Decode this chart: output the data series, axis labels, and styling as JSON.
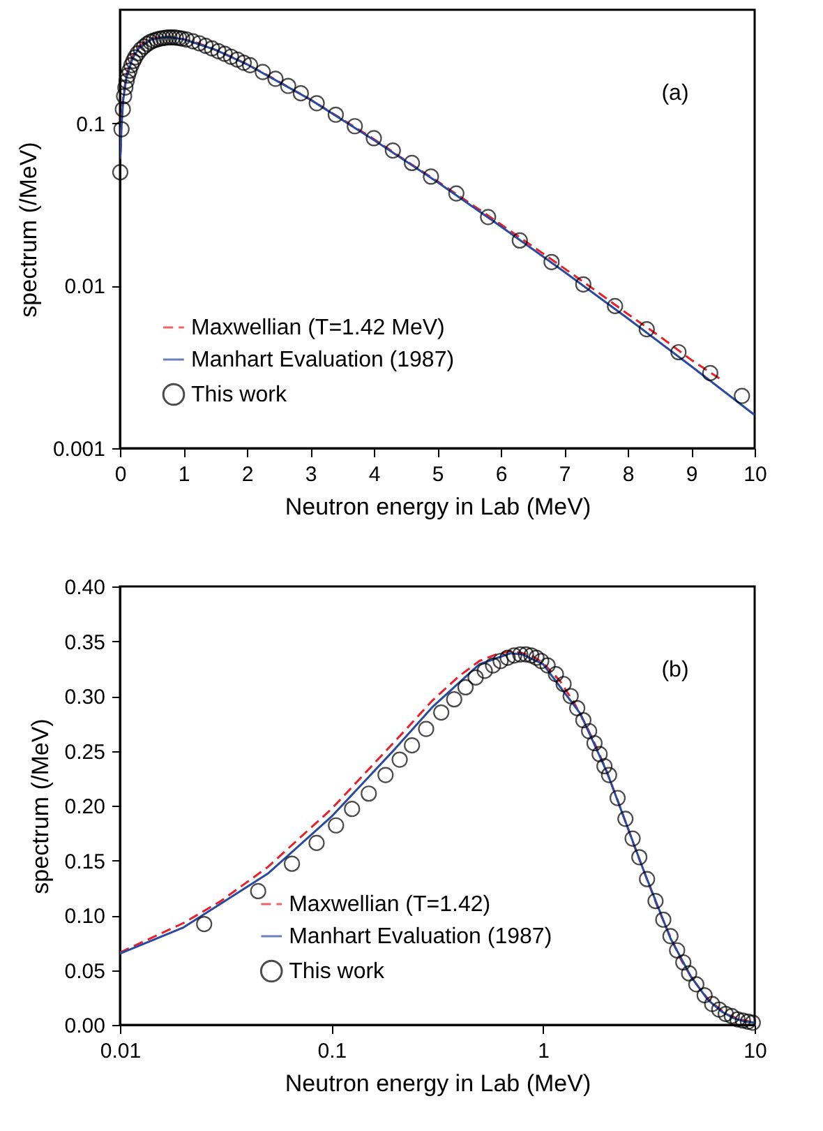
{
  "chart_data": [
    {
      "type": "line",
      "xlabel": "Neutron energy in Lab (MeV)",
      "ylabel": "spectrum (/MeV)",
      "annotations": [
        "(a)"
      ],
      "log": "y",
      "grid": false,
      "legend": "bottom left",
      "xlim": [
        0,
        10
      ],
      "xticks": [
        0,
        1,
        2,
        3,
        4,
        5,
        6,
        7,
        8,
        9,
        10
      ],
      "ylim": [
        0.001,
        0.5
      ],
      "yticks": [
        0.001,
        0.01,
        0.1
      ],
      "series": [
        {
          "name": "Maxwellian (T=1.42 MeV)",
          "type": "line",
          "color": "#e8202a",
          "line_style": "dashed",
          "x": [
            0.01,
            0.02,
            0.03,
            0.05,
            0.1,
            0.2,
            0.3,
            0.4,
            0.5,
            0.6,
            0.7,
            0.8,
            0.9,
            1,
            1.2,
            1.4,
            1.6,
            1.8,
            2,
            2.25,
            2.5,
            2.75,
            3,
            3.5,
            4,
            4.5,
            5,
            5.5,
            6,
            6.5,
            7,
            7.5,
            8,
            8.5,
            9,
            9.5
          ],
          "values": [
            0.066,
            0.093,
            0.113,
            0.144,
            0.197,
            0.259,
            0.296,
            0.318,
            0.332,
            0.338,
            0.341,
            0.339,
            0.336,
            0.33,
            0.314,
            0.294,
            0.273,
            0.252,
            0.231,
            0.205,
            0.181,
            0.159,
            0.14,
            0.106,
            0.08,
            0.059,
            0.044,
            0.0325,
            0.0239,
            0.0175,
            0.0128,
            0.0093,
            0.0067,
            0.0049,
            0.0035,
            0.0026
          ]
        },
        {
          "name": "Manhart Evaluation (1987)",
          "type": "line",
          "color": "#2a4aa0",
          "line_style": "solid",
          "x": [
            0,
            0.01,
            0.02,
            0.05,
            0.1,
            0.2,
            0.3,
            0.5,
            0.7,
            0.8,
            1,
            1.5,
            2,
            3,
            4,
            5,
            6,
            7,
            8,
            9,
            10
          ],
          "values": [
            0.06,
            0.065,
            0.089,
            0.138,
            0.19,
            0.252,
            0.29,
            0.329,
            0.339,
            0.338,
            0.329,
            0.284,
            0.231,
            0.14,
            0.079,
            0.0435,
            0.0232,
            0.0122,
            0.0063,
            0.0032,
            0.0016
          ]
        },
        {
          "name": "This work",
          "type": "scatter",
          "color": "#000000",
          "marker": "circle",
          "x": [
            0.005,
            0.025,
            0.045,
            0.065,
            0.085,
            0.105,
            0.125,
            0.15,
            0.18,
            0.21,
            0.24,
            0.28,
            0.33,
            0.38,
            0.43,
            0.48,
            0.53,
            0.58,
            0.63,
            0.68,
            0.73,
            0.78,
            0.83,
            0.88,
            0.93,
            0.98,
            1.05,
            1.15,
            1.25,
            1.35,
            1.45,
            1.55,
            1.65,
            1.75,
            1.85,
            1.95,
            2.05,
            2.25,
            2.45,
            2.65,
            2.85,
            3.1,
            3.4,
            3.7,
            4.0,
            4.3,
            4.6,
            4.9,
            5.3,
            5.8,
            6.3,
            6.8,
            7.3,
            7.8,
            8.3,
            8.8,
            9.3,
            9.8
          ],
          "values": [
            0.05,
            0.092,
            0.122,
            0.147,
            0.166,
            0.182,
            0.197,
            0.211,
            0.228,
            0.242,
            0.255,
            0.27,
            0.285,
            0.297,
            0.308,
            0.317,
            0.323,
            0.328,
            0.332,
            0.335,
            0.337,
            0.338,
            0.338,
            0.337,
            0.335,
            0.332,
            0.328,
            0.32,
            0.311,
            0.3,
            0.289,
            0.278,
            0.268,
            0.257,
            0.247,
            0.236,
            0.228,
            0.207,
            0.188,
            0.17,
            0.153,
            0.133,
            0.113,
            0.096,
            0.081,
            0.068,
            0.057,
            0.047,
            0.037,
            0.0265,
            0.019,
            0.014,
            0.0102,
            0.0075,
            0.0054,
            0.0039,
            0.0029,
            0.0021
          ]
        }
      ]
    },
    {
      "type": "line",
      "xlabel": "Neutron energy in Lab (MeV)",
      "ylabel": "spectrum (/MeV)",
      "annotations": [
        "(b)"
      ],
      "log": "x",
      "grid": false,
      "legend": "bottom",
      "xlim": [
        0.01,
        10
      ],
      "xticks": [
        0.01,
        0.1,
        1,
        10
      ],
      "ylim": [
        0,
        0.4
      ],
      "yticks": [
        {
          "value": 0,
          "label": "0.00"
        },
        {
          "value": 0.05,
          "label": "0.05"
        },
        {
          "value": 0.1,
          "label": "0.10"
        },
        {
          "value": 0.15,
          "label": "0.15"
        },
        {
          "value": 0.2,
          "label": "0.20"
        },
        {
          "value": 0.25,
          "label": "0.25"
        },
        {
          "value": 0.3,
          "label": "0.30"
        },
        {
          "value": 0.35,
          "label": "0.35"
        },
        {
          "value": 0.4,
          "label": "0.40"
        }
      ],
      "series": [
        {
          "name": "Maxwellian (T=1.42)",
          "type": "line",
          "color": "#e8202a",
          "line_style": "dashed",
          "x": [
            0.01,
            0.02,
            0.03,
            0.05,
            0.1,
            0.2,
            0.3,
            0.4,
            0.5,
            0.6,
            0.7,
            0.8,
            0.9,
            1,
            1.2,
            1.4,
            1.6,
            1.8,
            2,
            2.25,
            2.5,
            2.75,
            3,
            3.5,
            4,
            4.5,
            5,
            5.5,
            6,
            6.5,
            7,
            7.5,
            8,
            8.5,
            9,
            9.5,
            10
          ],
          "values": [
            0.066,
            0.093,
            0.113,
            0.144,
            0.197,
            0.259,
            0.296,
            0.318,
            0.332,
            0.338,
            0.341,
            0.339,
            0.336,
            0.33,
            0.314,
            0.294,
            0.273,
            0.252,
            0.231,
            0.205,
            0.181,
            0.159,
            0.14,
            0.106,
            0.08,
            0.059,
            0.044,
            0.033,
            0.024,
            0.018,
            0.013,
            0.009,
            0.007,
            0.005,
            0.004,
            0.003,
            0.002
          ]
        },
        {
          "name": "Manhart Evaluation (1987)",
          "type": "line",
          "color": "#2a4aa0",
          "line_style": "solid",
          "x": [
            0.01,
            0.02,
            0.05,
            0.1,
            0.2,
            0.3,
            0.5,
            0.7,
            0.8,
            1,
            1.5,
            2,
            3,
            4,
            5,
            6,
            7,
            8,
            9,
            10
          ],
          "values": [
            0.065,
            0.089,
            0.138,
            0.19,
            0.252,
            0.29,
            0.329,
            0.339,
            0.338,
            0.329,
            0.284,
            0.231,
            0.14,
            0.079,
            0.044,
            0.023,
            0.012,
            0.006,
            0.003,
            0.002
          ]
        },
        {
          "name": "This work",
          "type": "scatter",
          "color": "#000000",
          "marker": "circle",
          "x": [
            0.025,
            0.045,
            0.065,
            0.085,
            0.105,
            0.125,
            0.15,
            0.18,
            0.21,
            0.24,
            0.28,
            0.33,
            0.38,
            0.43,
            0.48,
            0.53,
            0.58,
            0.63,
            0.68,
            0.73,
            0.78,
            0.83,
            0.88,
            0.93,
            0.98,
            1.05,
            1.15,
            1.25,
            1.35,
            1.45,
            1.55,
            1.65,
            1.75,
            1.85,
            1.95,
            2.05,
            2.25,
            2.45,
            2.65,
            2.85,
            3.1,
            3.4,
            3.7,
            4.0,
            4.3,
            4.6,
            4.9,
            5.3,
            5.8,
            6.3,
            6.8,
            7.3,
            7.8,
            8.3,
            8.8,
            9.3,
            9.8
          ],
          "values": [
            0.092,
            0.122,
            0.147,
            0.166,
            0.182,
            0.197,
            0.211,
            0.228,
            0.242,
            0.255,
            0.27,
            0.285,
            0.297,
            0.308,
            0.317,
            0.323,
            0.328,
            0.332,
            0.335,
            0.337,
            0.338,
            0.338,
            0.337,
            0.335,
            0.332,
            0.328,
            0.32,
            0.311,
            0.3,
            0.289,
            0.278,
            0.268,
            0.257,
            0.247,
            0.236,
            0.228,
            0.207,
            0.188,
            0.17,
            0.153,
            0.133,
            0.113,
            0.096,
            0.081,
            0.068,
            0.057,
            0.047,
            0.037,
            0.027,
            0.019,
            0.014,
            0.01,
            0.008,
            0.005,
            0.004,
            0.003,
            0.002
          ]
        }
      ]
    }
  ]
}
